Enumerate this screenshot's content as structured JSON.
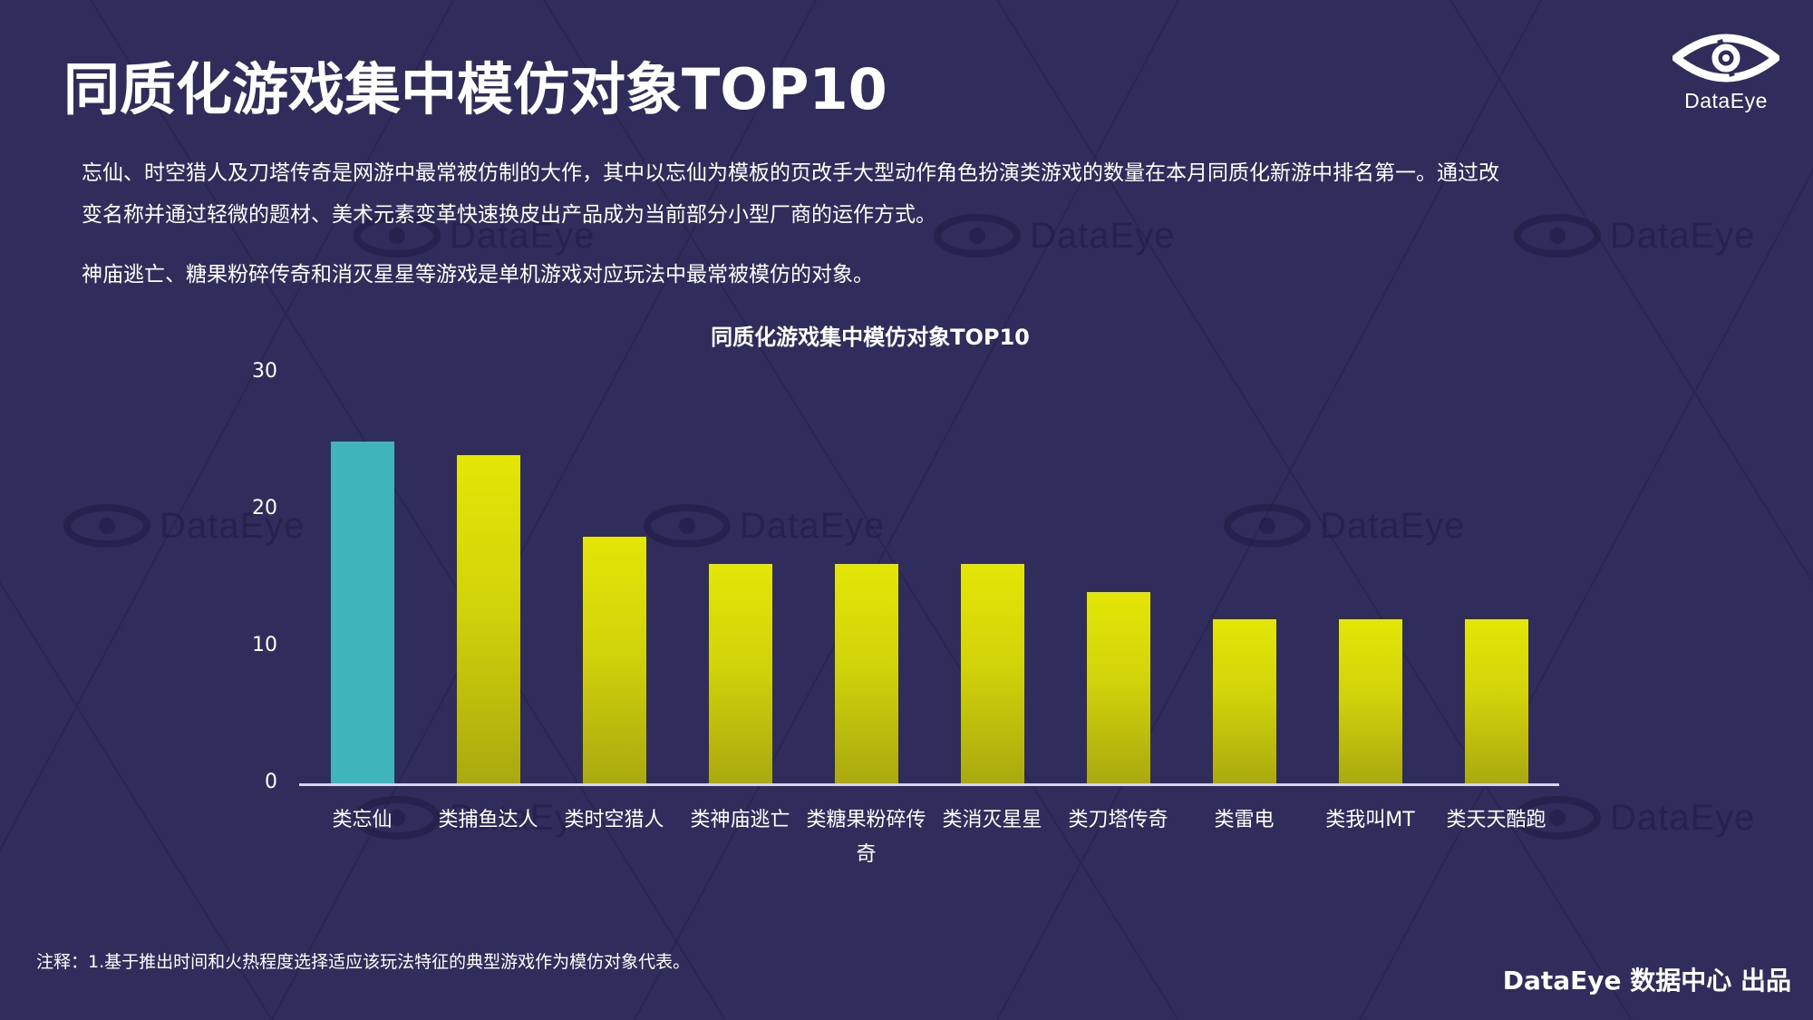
{
  "page": {
    "title": "同质化游戏集中模仿对象TOP10",
    "logo_text": "DataEye",
    "watermark_text": "DataEye",
    "description": [
      "忘仙、时空猎人及刀塔传奇是网游中最常被仿制的大作，其中以忘仙为模板的页改手大型动作角色扮演类游戏的数量在本月同质化新游中排名第一。通过改",
      "变名称并通过轻微的题材、美术元素变革快速换皮出产品成为当前部分小型厂商的运作方式。",
      "神庙逃亡、糖果粉碎传奇和消灭星星等游戏是单机游戏对应玩法中最常被模仿的对象。"
    ],
    "note": "注释：1.基于推出时间和火热程度选择适应该玩法特征的典型游戏作为模仿对象代表。",
    "footer": "DataEye 数据中心 出品"
  },
  "colors": {
    "background": "#302c5c",
    "highlight_bar": "#40b4bc",
    "bar_gradient_top": "#e3e606",
    "bar_gradient_bottom": "#aaa910",
    "axis_line": "#d8d4f0"
  },
  "chart_data": {
    "type": "bar",
    "title": "同质化游戏集中模仿对象TOP10",
    "xlabel": "",
    "ylabel": "",
    "ylim": [
      0,
      30
    ],
    "yticks": [
      "0",
      "10",
      "20",
      "30"
    ],
    "grid": false,
    "legend": null,
    "categories": [
      "类忘仙",
      "类捕鱼达人",
      "类时空猎人",
      "类神庙逃亡",
      "类糖果粉碎传奇",
      "类消灭星星",
      "类刀塔传奇",
      "类雷电",
      "类我叫MT",
      "类天天酷跑"
    ],
    "values": [
      25,
      24,
      18,
      16,
      16,
      16,
      14,
      12,
      12,
      12
    ],
    "highlight_index": 0
  }
}
